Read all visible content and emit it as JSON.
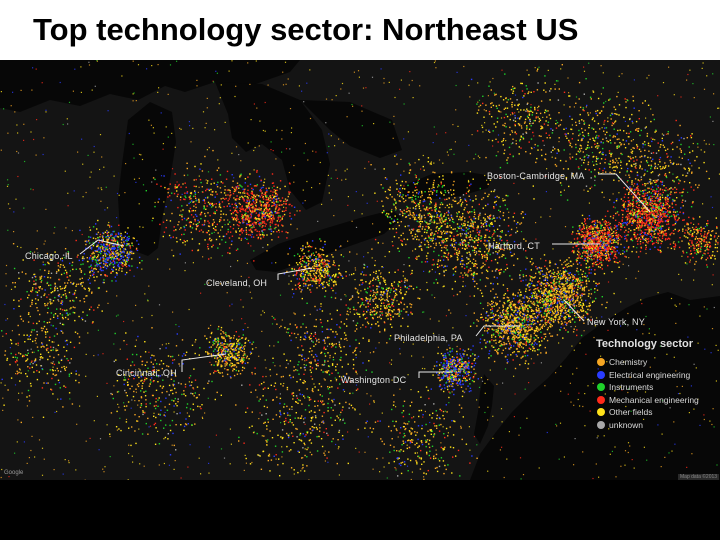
{
  "title": "Top technology sector: Northeast US",
  "cities": {
    "boston": "Boston-Cambridge, MA",
    "hartford": "Hartford, CT",
    "chicago": "Chicago, IL",
    "cleveland": "Cleveland, OH",
    "newyork": "New York, NY",
    "philadelphia": "Philadelphia, PA",
    "cincinnati": "Cincinnati, OH",
    "washington": "Washington DC"
  },
  "legend": {
    "title": "Technology sector",
    "items": [
      {
        "label": "Chemistry",
        "color": "#f5a623"
      },
      {
        "label": "Electrical engineering",
        "color": "#2a3cff"
      },
      {
        "label": "Instruments",
        "color": "#1fd12a"
      },
      {
        "label": "Mechanical engineering",
        "color": "#ff2a1a"
      },
      {
        "label": "Other fields",
        "color": "#ffe21a"
      },
      {
        "label": "unknown",
        "color": "#a8a8a8"
      }
    ]
  },
  "credits": {
    "google": "Google",
    "attribution": "Map data ©2013"
  }
}
